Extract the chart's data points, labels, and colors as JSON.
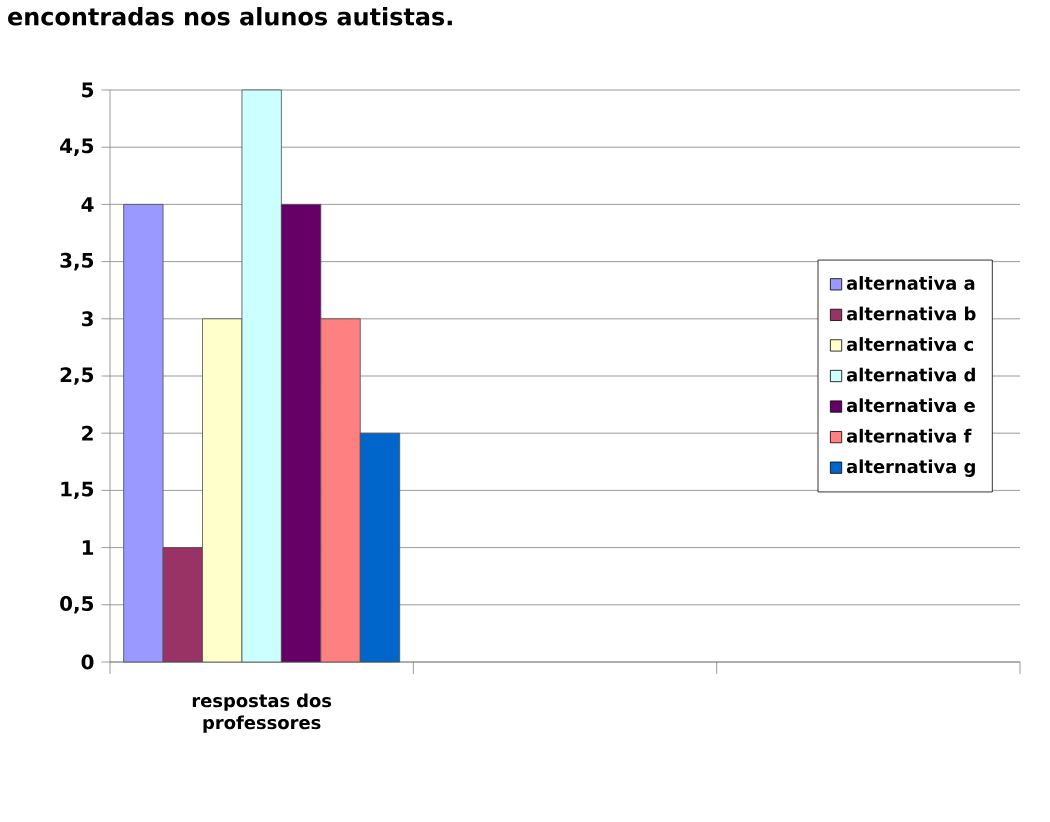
{
  "chart_data": {
    "type": "bar",
    "title": "encontradas nos alunos autistas.",
    "categories": [
      "respostas dos professores",
      null,
      null
    ],
    "series": [
      {
        "name": "alternativa a",
        "color": "#9999ff",
        "values": [
          4,
          null,
          null
        ]
      },
      {
        "name": "alternativa b",
        "color": "#993366",
        "values": [
          1,
          null,
          null
        ]
      },
      {
        "name": "alternativa c",
        "color": "#ffffcc",
        "values": [
          3,
          null,
          null
        ]
      },
      {
        "name": "alternativa d",
        "color": "#ccffff",
        "values": [
          5,
          null,
          null
        ]
      },
      {
        "name": "alternativa e",
        "color": "#660066",
        "values": [
          4,
          null,
          null
        ]
      },
      {
        "name": "alternativa f",
        "color": "#ff8080",
        "values": [
          3,
          null,
          null
        ]
      },
      {
        "name": "alternativa g",
        "color": "#0066cc",
        "values": [
          2,
          null,
          null
        ]
      }
    ],
    "ylim": [
      0,
      5
    ],
    "yticks": [
      0,
      {
        "value": 0.5,
        "label": "0,5"
      },
      1,
      {
        "value": 1.5,
        "label": "1,5"
      },
      2,
      {
        "value": 2.5,
        "label": "2,5"
      },
      3,
      {
        "value": 3.5,
        "label": "3,5"
      },
      4,
      {
        "value": 4.5,
        "label": "4,5"
      },
      5
    ],
    "grid": "y",
    "legend": "right"
  }
}
